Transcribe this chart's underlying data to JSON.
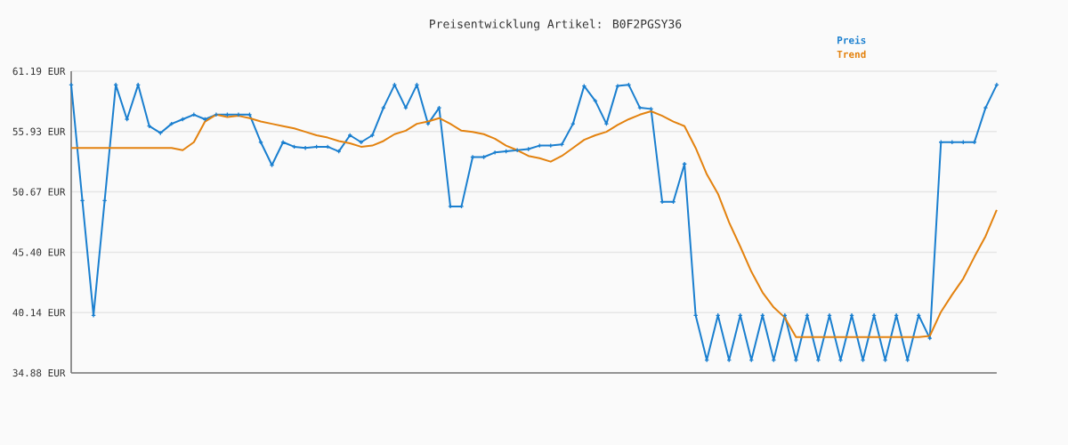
{
  "chart_data": {
    "type": "line",
    "title": "Preisentwicklung Artikel: B0F2PGSY36",
    "categories": [
      null,
      null,
      null,
      null,
      null,
      null,
      null,
      null,
      null,
      null,
      null,
      null,
      null,
      null,
      null,
      null,
      null,
      null,
      null,
      null,
      null,
      null,
      null,
      null,
      null,
      null,
      null,
      null,
      null,
      null,
      null,
      null,
      null,
      null,
      null,
      null,
      null,
      null,
      null,
      null,
      null,
      null,
      null,
      null,
      null,
      null,
      null,
      null,
      null,
      null,
      null,
      null,
      null,
      null,
      null,
      null,
      null,
      null,
      null,
      null,
      null,
      null,
      null,
      null,
      null,
      null,
      null,
      null,
      null,
      null,
      null,
      null,
      null,
      null,
      null,
      null,
      null,
      null,
      null,
      null,
      null,
      null,
      null,
      null
    ],
    "series": [
      {
        "name": "Preis",
        "color": "#1a7fcf",
        "marker": "cross",
        "values": [
          60.0,
          49.9,
          39.9,
          49.9,
          60.0,
          57.0,
          60.0,
          56.4,
          55.8,
          56.6,
          57.0,
          57.4,
          57.0,
          57.4,
          57.4,
          57.4,
          57.4,
          55.0,
          53.0,
          55.0,
          54.6,
          54.5,
          54.6,
          54.6,
          54.2,
          55.6,
          55.0,
          55.6,
          58.0,
          60.0,
          58.0,
          60.0,
          56.6,
          58.0,
          49.4,
          49.4,
          53.7,
          53.7,
          54.1,
          54.2,
          54.3,
          54.4,
          54.7,
          54.7,
          54.8,
          56.6,
          59.9,
          58.6,
          56.6,
          59.9,
          60.0,
          58.0,
          57.9,
          49.8,
          49.8,
          53.1,
          39.9,
          36.0,
          39.9,
          36.0,
          39.9,
          36.0,
          39.9,
          36.0,
          39.9,
          36.0,
          39.9,
          36.0,
          39.9,
          36.0,
          39.9,
          36.0,
          39.9,
          36.0,
          39.9,
          36.0,
          39.9,
          37.9,
          55.0,
          55.0,
          55.0,
          55.0,
          58.0,
          60.0
        ]
      },
      {
        "name": "Trend",
        "color": "#e3820f",
        "marker": "none",
        "values": [
          54.5,
          54.5,
          54.5,
          54.5,
          54.5,
          54.5,
          54.5,
          54.5,
          54.5,
          54.5,
          54.3,
          55.0,
          56.8,
          57.4,
          57.2,
          57.3,
          57.1,
          56.8,
          56.6,
          56.4,
          56.2,
          55.9,
          55.6,
          55.4,
          55.1,
          54.9,
          54.6,
          54.7,
          55.1,
          55.7,
          56.0,
          56.6,
          56.8,
          57.1,
          56.6,
          56.0,
          55.9,
          55.7,
          55.3,
          54.7,
          54.3,
          53.8,
          53.6,
          53.3,
          53.8,
          54.5,
          55.2,
          55.6,
          55.9,
          56.5,
          57.0,
          57.4,
          57.7,
          57.3,
          56.8,
          56.4,
          54.5,
          52.2,
          50.5,
          48.0,
          45.9,
          43.7,
          41.9,
          40.6,
          39.7,
          38.0,
          38.0,
          38.0,
          38.0,
          38.0,
          38.0,
          38.0,
          38.0,
          38.0,
          38.0,
          38.0,
          38.0,
          38.1,
          40.2,
          41.7,
          43.1,
          45.0,
          46.8,
          49.1
        ]
      }
    ],
    "ylim": [
      34.88,
      61.19
    ],
    "yticks": [
      {
        "value": 61.19,
        "label": "61.19 EUR"
      },
      {
        "value": 55.93,
        "label": "55.93 EUR"
      },
      {
        "value": 50.67,
        "label": "50.67 EUR"
      },
      {
        "value": 45.4,
        "label": "45.40 EUR"
      },
      {
        "value": 40.14,
        "label": "40.14 EUR"
      },
      {
        "value": 34.88,
        "label": "34.88 EUR"
      }
    ],
    "grid": "y",
    "legend": "top right"
  }
}
